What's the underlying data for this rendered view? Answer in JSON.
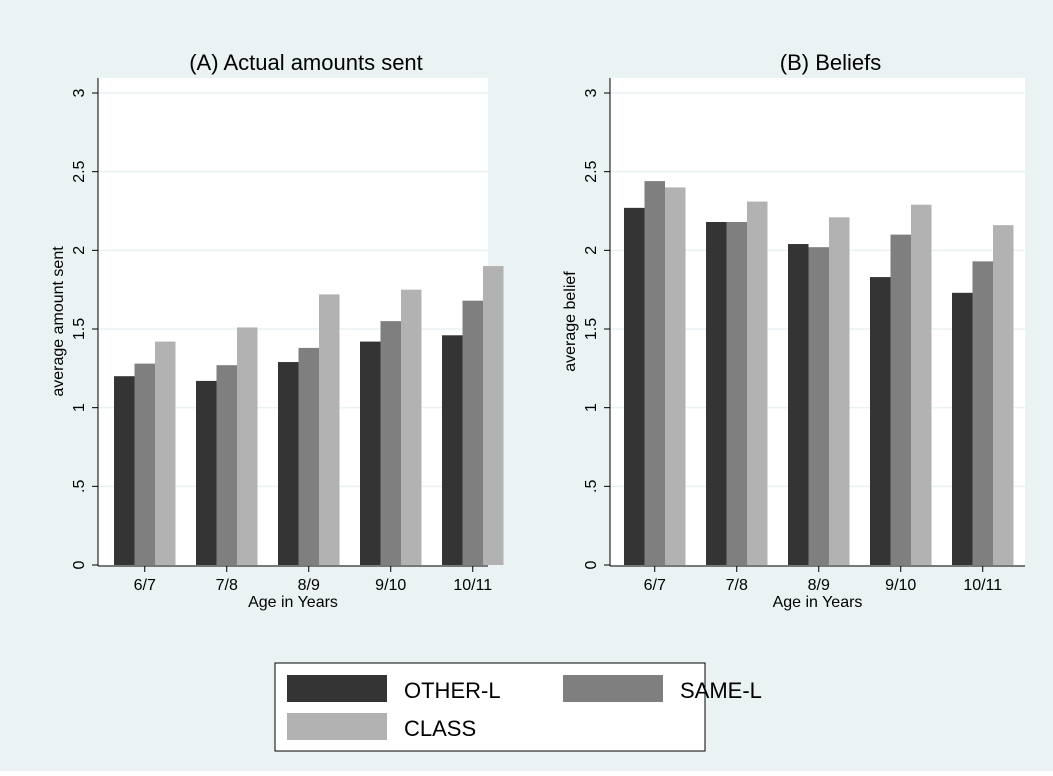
{
  "colors": {
    "outer_bg": "#EAF2F3",
    "plot_bg": "#FFFFFF",
    "grid": "#EAF2F3",
    "other_l": "#343434",
    "same_l": "#7F7F7F",
    "class": "#B2B2B2"
  },
  "legend": {
    "placement": "bottom",
    "items": [
      {
        "label": "OTHER-L",
        "color": "#343434"
      },
      {
        "label": "SAME-L",
        "color": "#7F7F7F"
      },
      {
        "label": "CLASS",
        "color": "#B2B2B2"
      }
    ]
  },
  "chart_data": [
    {
      "type": "bar",
      "title": "(A) Actual amounts sent",
      "xlabel": "Age in Years",
      "ylabel": "average amount sent",
      "categories": [
        "6/7",
        "7/8",
        "8/9",
        "9/10",
        "10/11"
      ],
      "yticks": [
        "0",
        ".5",
        "1",
        "1.5",
        "2",
        "2.5",
        "3"
      ],
      "ylim": [
        0,
        3
      ],
      "grid": true,
      "series": [
        {
          "name": "OTHER-L",
          "values": [
            1.2,
            1.17,
            1.29,
            1.42,
            1.46
          ]
        },
        {
          "name": "SAME-L",
          "values": [
            1.28,
            1.27,
            1.38,
            1.55,
            1.68
          ]
        },
        {
          "name": "CLASS",
          "values": [
            1.42,
            1.51,
            1.72,
            1.75,
            1.9
          ]
        }
      ]
    },
    {
      "type": "bar",
      "title": "(B) Beliefs",
      "xlabel": "Age in Years",
      "ylabel": "average belief",
      "categories": [
        "6/7",
        "7/8",
        "8/9",
        "9/10",
        "10/11"
      ],
      "yticks": [
        "0",
        ".5",
        "1",
        "1.5",
        "2",
        "2.5",
        "3"
      ],
      "ylim": [
        0,
        3
      ],
      "grid": true,
      "series": [
        {
          "name": "OTHER-L",
          "values": [
            2.27,
            2.18,
            2.04,
            1.83,
            1.73
          ]
        },
        {
          "name": "SAME-L",
          "values": [
            2.44,
            2.18,
            2.02,
            2.1,
            1.93
          ]
        },
        {
          "name": "CLASS",
          "values": [
            2.4,
            2.31,
            2.21,
            2.29,
            2.16
          ]
        }
      ]
    }
  ]
}
